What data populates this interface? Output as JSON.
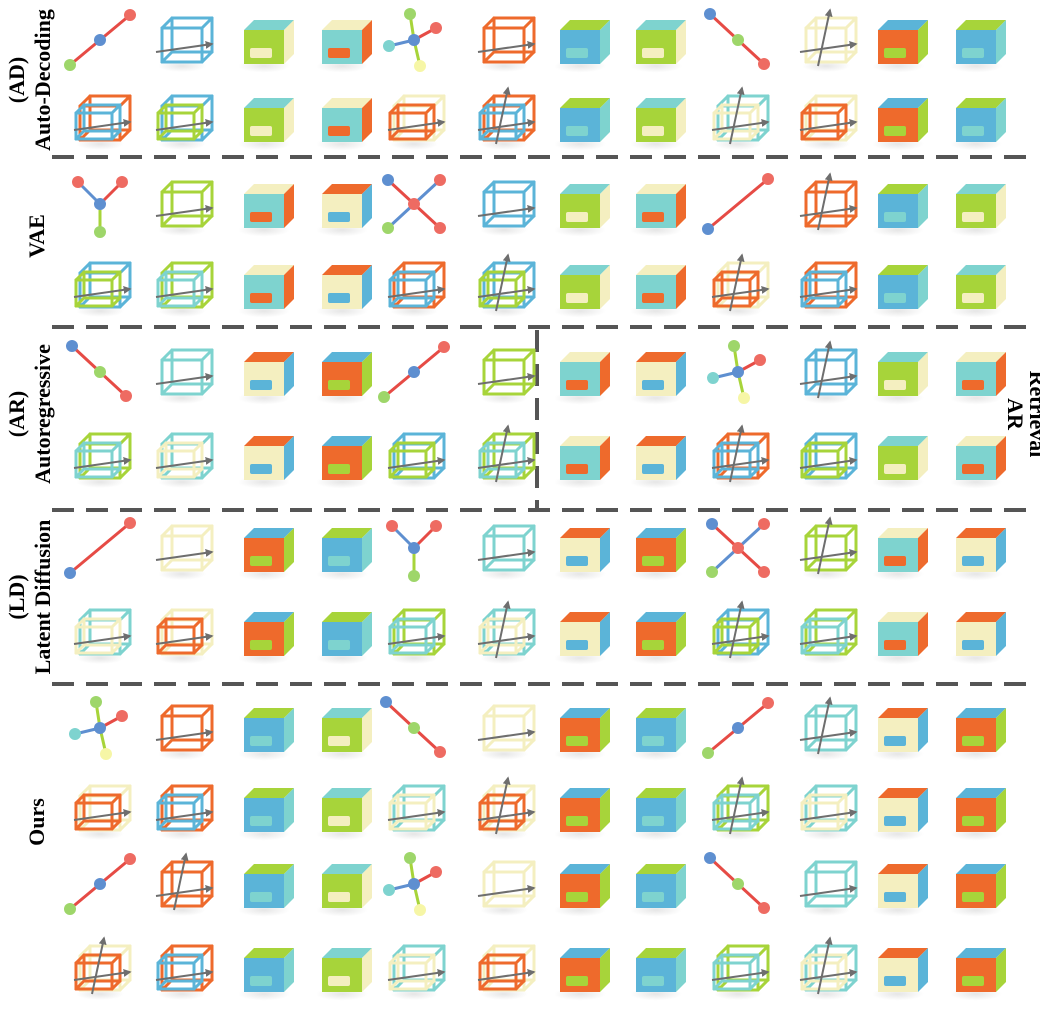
{
  "rows": [
    {
      "id": "ad",
      "label_line1": "(AD)",
      "label_line2": "Auto-Decoding"
    },
    {
      "id": "vae",
      "label_line1": "VAE",
      "label_line2": ""
    },
    {
      "id": "ar",
      "label_line1": "(AR)",
      "label_line2": "Autoregressive"
    },
    {
      "id": "ld",
      "label_line1": "(LD)",
      "label_line2": "Latent Diffusion"
    },
    {
      "id": "ours",
      "label_line1": "Ours",
      "label_line2": ""
    }
  ],
  "ar_retrieval": {
    "line1": "AR",
    "line2": "Retrieval"
  },
  "colors": {
    "orange": "#EE6A2C",
    "blue": "#5BB4D8",
    "green": "#A7D43A",
    "cream": "#F4EFC0",
    "teal": "#7ED3CF",
    "red": "#E64B45",
    "node_blue": "#5E8FD0",
    "node_green": "#9ED66A",
    "node_yellow": "#F6F6A6",
    "node_red": "#EE6B62",
    "arrow": "#6E6E6E",
    "separator": "#555555"
  }
}
